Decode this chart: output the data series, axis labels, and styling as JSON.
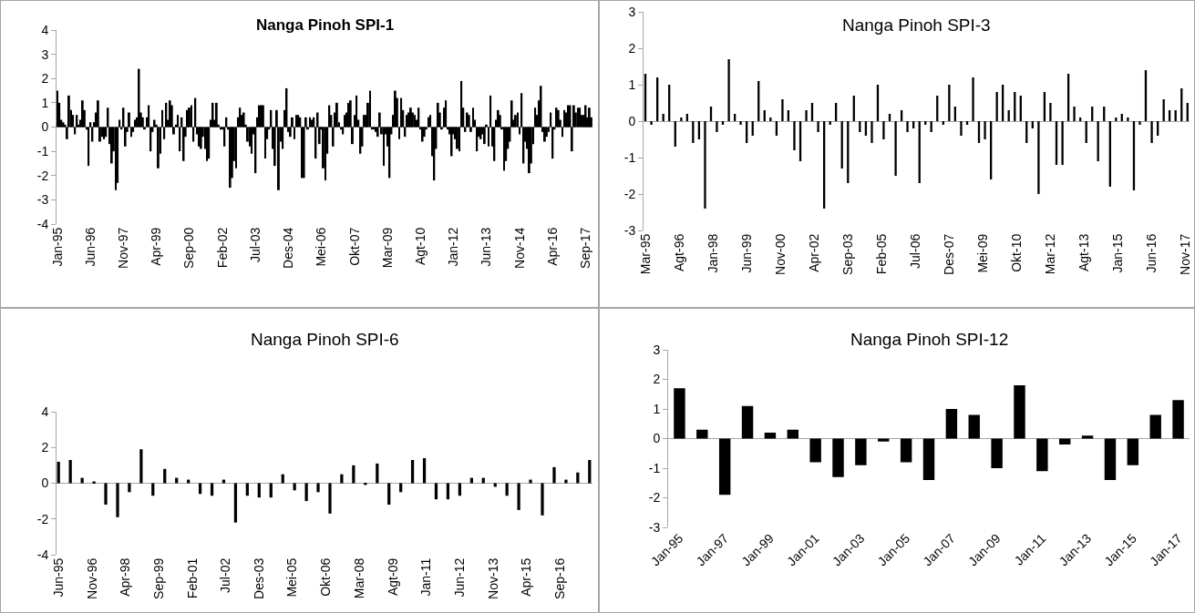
{
  "chart_data": [
    {
      "type": "bar",
      "title": "Nanga Pinoh SPI-1",
      "ylim": [
        -4,
        4
      ],
      "yticks": [
        -4,
        -3,
        -2,
        -1,
        0,
        1,
        2,
        3,
        4
      ],
      "categories": [
        "Jan-95",
        null,
        null,
        null,
        null,
        null,
        null,
        null,
        null,
        null,
        null,
        null,
        null,
        null,
        null,
        null,
        null,
        "Jun-96",
        null,
        null,
        null,
        null,
        null,
        null,
        null,
        null,
        null,
        null,
        null,
        null,
        null,
        null,
        null,
        null,
        "Nov-97",
        null,
        null,
        null,
        null,
        null,
        null,
        null,
        null,
        null,
        null,
        null,
        null,
        null,
        null,
        null,
        null,
        "Apr-99",
        null,
        null,
        null,
        null,
        null,
        null,
        null,
        null,
        null,
        null,
        null,
        null,
        null,
        null,
        null,
        null,
        "Sep-00",
        null,
        null,
        null,
        null,
        null,
        null,
        null,
        null,
        null,
        null,
        null,
        null,
        null,
        null,
        null,
        null,
        "Feb-02",
        null,
        null,
        null,
        null,
        null,
        null,
        null,
        null,
        null,
        null,
        null,
        null,
        null,
        null,
        null,
        null,
        "Jul-03",
        null,
        null,
        null,
        null,
        null,
        null,
        null,
        null,
        null,
        null,
        null,
        null,
        null,
        null,
        null,
        null,
        "Des-04",
        null,
        null,
        null,
        null,
        null,
        null,
        null,
        null,
        null,
        null,
        null,
        null,
        null,
        null,
        null,
        null,
        "Mei-06",
        null,
        null,
        null,
        null,
        null,
        null,
        null,
        null,
        null,
        null,
        null,
        null,
        null,
        null,
        null,
        null,
        "Okt-07",
        null,
        null,
        null,
        null,
        null,
        null,
        null,
        null,
        null,
        null,
        null,
        null,
        null,
        null,
        null,
        null,
        "Mar-09",
        null,
        null,
        null,
        null,
        null,
        null,
        null,
        null,
        null,
        null,
        null,
        null,
        null,
        null,
        null,
        null,
        "Agt-10",
        null,
        null,
        null,
        null,
        null,
        null,
        null,
        null,
        null,
        null,
        null,
        null,
        null,
        null,
        null,
        null,
        "Jan-12",
        null,
        null,
        null,
        null,
        null,
        null,
        null,
        null,
        null,
        null,
        null,
        null,
        null,
        null,
        null,
        null,
        "Jun-13",
        null,
        null,
        null,
        null,
        null,
        null,
        null,
        null,
        null,
        null,
        null,
        null,
        null,
        null,
        null,
        null,
        "Nov-14",
        null,
        null,
        null,
        null,
        null,
        null,
        null,
        null,
        null,
        null,
        null,
        null,
        null,
        null,
        null,
        null,
        "Apr-16",
        null,
        null,
        null,
        null,
        null,
        null,
        null,
        null,
        null,
        null,
        null,
        null,
        null,
        null,
        null,
        null,
        "Sep-17",
        null,
        null,
        null
      ],
      "series": [
        {
          "color": "#000000",
          "values": [
            1.5,
            1.0,
            0.3,
            0.2,
            0.1,
            -0.5,
            1.3,
            0.7,
            0.5,
            -0.3,
            0.5,
            0.1,
            0.3,
            1.1,
            0.7,
            -0.1,
            -1.6,
            0.2,
            -0.6,
            0.2,
            0.6,
            1.1,
            -0.6,
            -0.4,
            -0.5,
            -0.4,
            0.8,
            -0.7,
            -1.5,
            -1.0,
            -2.6,
            -2.3,
            0.3,
            -0.1,
            0.8,
            -0.8,
            -0.2,
            0.6,
            -0.4,
            -0.2,
            0.3,
            0.4,
            2.4,
            0.6,
            0.4,
            -0.1,
            0.4,
            0.9,
            -1.0,
            -0.2,
            0.3,
            0.1,
            -1.7,
            -1.1,
            0.7,
            -0.5,
            1.0,
            0.3,
            1.1,
            0.9,
            -0.3,
            0.1,
            0.5,
            -1.0,
            0.4,
            -1.4,
            -0.4,
            0.7,
            0.8,
            0.9,
            -0.6,
            1.2,
            -0.3,
            -0.8,
            -0.9,
            -0.4,
            -0.9,
            -1.4,
            -1.3,
            0.3,
            1.0,
            0.3,
            1.0,
            0.1,
            -0.1,
            -0.1,
            -0.8,
            0.4,
            -0.1,
            -2.5,
            -2.1,
            -1.4,
            -1.7,
            0.4,
            0.8,
            0.5,
            0.6,
            0.1,
            -0.6,
            -0.8,
            -1.1,
            -0.3,
            -1.9,
            0.4,
            0.9,
            0.9,
            0.9,
            -1.3,
            -0.5,
            -0.1,
            0.7,
            -0.9,
            -1.6,
            0.7,
            -2.6,
            -0.6,
            -0.9,
            0.7,
            1.6,
            -0.2,
            -0.4,
            0.4,
            -0.5,
            0.5,
            0.5,
            0.4,
            -2.1,
            -2.1,
            0.4,
            -0.1,
            0.4,
            0.3,
            0.4,
            -1.3,
            0.6,
            -0.7,
            -0.1,
            -1.7,
            -2.2,
            -1.1,
            0.9,
            0.5,
            -0.8,
            0.6,
            1.0,
            0.2,
            -0.1,
            -0.3,
            0.5,
            0.6,
            1.0,
            1.1,
            -0.7,
            0.5,
            1.3,
            0.3,
            -1.1,
            -0.8,
            0.5,
            0.5,
            1.0,
            1.5,
            -0.1,
            -0.1,
            -0.2,
            -0.4,
            0.6,
            -0.3,
            -1.6,
            -0.3,
            -0.8,
            -2.1,
            -0.3,
            0.5,
            1.5,
            1.2,
            -0.5,
            1.2,
            0.7,
            -0.4,
            0.5,
            0.6,
            0.8,
            0.6,
            0.5,
            0.3,
            0.8,
            -0.1,
            -0.6,
            -0.4,
            -0.1,
            0.4,
            0.5,
            -1.2,
            -2.2,
            -0.9,
            1.0,
            0.6,
            -0.1,
            0.8,
            1.1,
            -0.1,
            -0.3,
            -1.2,
            -0.3,
            -0.5,
            -0.9,
            -1.0,
            1.9,
            0.8,
            -0.2,
            0.6,
            0.5,
            -0.2,
            0.8,
            0.3,
            -1.0,
            -0.4,
            -0.5,
            -0.3,
            -0.7,
            0.1,
            -0.8,
            1.3,
            -0.8,
            -1.4,
            0.3,
            0.7,
            0.5,
            -0.1,
            -1.8,
            -1.4,
            -0.9,
            -0.6,
            1.1,
            0.3,
            0.5,
            0.6,
            -0.3,
            1.4,
            -1.5,
            -0.6,
            -0.9,
            -1.9,
            -1.5,
            -0.7,
            0.8,
            0.5,
            1.1,
            1.7,
            -0.2,
            -0.6,
            -0.4,
            -0.2,
            0.6,
            -1.3,
            -0.1,
            0.8,
            0.7,
            0.3,
            -0.4,
            0.7,
            0.6,
            0.9,
            0.9,
            -1.0,
            0.9,
            0.6,
            0.8,
            0.8,
            0.5,
            0.5,
            0.9,
            0.4,
            0.8,
            0.4
          ]
        }
      ]
    },
    {
      "type": "bar",
      "title": "Nanga Pinoh SPI-3",
      "ylim": [
        -3,
        3
      ],
      "yticks": [
        -3,
        -2,
        -1,
        0,
        1,
        2,
        3
      ],
      "xlim": [
        "1995-02-01",
        "2018-01-01"
      ],
      "xticks": [
        {
          "value": "1995-03",
          "label": "Mar-95"
        },
        {
          "value": "1996-08",
          "label": "Agt-96"
        },
        {
          "value": "1998-01",
          "label": "Jan-98"
        },
        {
          "value": "1999-06",
          "label": "Jun-99"
        },
        {
          "value": "2000-11",
          "label": "Nov-00"
        },
        {
          "value": "2002-04",
          "label": "Apr-02"
        },
        {
          "value": "2003-09",
          "label": "Sep-03"
        },
        {
          "value": "2005-02",
          "label": "Feb-05"
        },
        {
          "value": "2006-07",
          "label": "Jul-06"
        },
        {
          "value": "2007-12",
          "label": "Des-07"
        },
        {
          "value": "2009-05",
          "label": "Mei-09"
        },
        {
          "value": "2010-10",
          "label": "Okt-10"
        },
        {
          "value": "2012-03",
          "label": "Mar-12"
        },
        {
          "value": "2013-08",
          "label": "Agt-13"
        },
        {
          "value": "2015-01",
          "label": "Jan-15"
        },
        {
          "value": "2016-06",
          "label": "Jun-16"
        },
        {
          "value": "2017-11",
          "label": "Nov-17"
        }
      ],
      "x": [
        "1995-03",
        "1995-06",
        "1995-09",
        "1995-12",
        "1996-03",
        "1996-06",
        "1996-09",
        "1996-12",
        "1997-03",
        "1997-06",
        "1997-09",
        "1997-12",
        "1998-03",
        "1998-06",
        "1998-09",
        "1998-12",
        "1999-03",
        "1999-06",
        "1999-09",
        "1999-12",
        "2000-03",
        "2000-06",
        "2000-09",
        "2000-12",
        "2001-03",
        "2001-06",
        "2001-09",
        "2001-12",
        "2002-03",
        "2002-06",
        "2002-09",
        "2002-12",
        "2003-03",
        "2003-06",
        "2003-09",
        "2003-12",
        "2004-03",
        "2004-06",
        "2004-09",
        "2004-12",
        "2005-03",
        "2005-06",
        "2005-09",
        "2005-12",
        "2006-03",
        "2006-06",
        "2006-09",
        "2006-12",
        "2007-03",
        "2007-06",
        "2007-09",
        "2007-12",
        "2008-03",
        "2008-06",
        "2008-09",
        "2008-12",
        "2009-03",
        "2009-06",
        "2009-09",
        "2009-12",
        "2010-03",
        "2010-06",
        "2010-09",
        "2010-12",
        "2011-03",
        "2011-06",
        "2011-09",
        "2011-12",
        "2012-03",
        "2012-06",
        "2012-09",
        "2012-12",
        "2013-03",
        "2013-06",
        "2013-09",
        "2013-12",
        "2014-03",
        "2014-06",
        "2014-09",
        "2014-12",
        "2015-03",
        "2015-06",
        "2015-09",
        "2015-12",
        "2016-03",
        "2016-06",
        "2016-09",
        "2016-12",
        "2017-03",
        "2017-06",
        "2017-09",
        "2017-12"
      ],
      "series": [
        {
          "color": "#000000",
          "values": [
            1.3,
            -0.1,
            1.2,
            0.2,
            1.0,
            -0.7,
            0.1,
            0.2,
            -0.6,
            -0.5,
            -2.4,
            0.4,
            -0.3,
            -0.1,
            1.7,
            0.2,
            -0.1,
            -0.6,
            -0.4,
            1.1,
            0.3,
            0.1,
            -0.4,
            0.6,
            0.3,
            -0.8,
            -1.1,
            0.3,
            0.5,
            -0.3,
            -2.4,
            -0.1,
            0.5,
            -1.3,
            -1.7,
            0.7,
            -0.3,
            -0.4,
            -0.6,
            1.0,
            -0.5,
            0.2,
            -1.5,
            0.3,
            -0.3,
            -0.2,
            -1.7,
            -0.1,
            -0.3,
            0.7,
            -0.1,
            1.0,
            0.4,
            -0.4,
            -0.1,
            1.2,
            -0.6,
            -0.5,
            -1.6,
            0.8,
            1.0,
            0.3,
            0.8,
            0.7,
            -0.6,
            -0.2,
            -2.0,
            0.8,
            0.5,
            -1.2,
            -1.2,
            1.3,
            0.4,
            0.1,
            -0.6,
            0.4,
            -1.1,
            0.4,
            -1.8,
            0.1,
            0.2,
            0.1,
            -1.9,
            -0.1,
            1.4,
            -0.6,
            -0.4,
            0.6,
            0.3,
            0.3,
            0.9,
            0.5
          ]
        }
      ]
    },
    {
      "type": "bar",
      "title": "Nanga Pinoh SPI-6",
      "ylim": [
        -4,
        4
      ],
      "yticks": [
        -4,
        -2,
        0,
        2,
        4
      ],
      "xlim": [
        "1995-05-01",
        "2018-01-15"
      ],
      "xticks": [
        {
          "value": "1995-06",
          "label": "Jun-95"
        },
        {
          "value": "1996-11",
          "label": "Nov-96"
        },
        {
          "value": "1998-04",
          "label": "Apr-98"
        },
        {
          "value": "1999-09",
          "label": "Sep-99"
        },
        {
          "value": "2001-02",
          "label": "Feb-01"
        },
        {
          "value": "2002-07",
          "label": "Jul-02"
        },
        {
          "value": "2003-12",
          "label": "Des-03"
        },
        {
          "value": "2005-05",
          "label": "Mei-05"
        },
        {
          "value": "2006-10",
          "label": "Okt-06"
        },
        {
          "value": "2008-03",
          "label": "Mar-08"
        },
        {
          "value": "2009-08",
          "label": "Agt-09"
        },
        {
          "value": "2011-01",
          "label": "Jan-11"
        },
        {
          "value": "2012-06",
          "label": "Jun-12"
        },
        {
          "value": "2013-11",
          "label": "Nov-13"
        },
        {
          "value": "2015-04",
          "label": "Apr-15"
        },
        {
          "value": "2016-09",
          "label": "Sep-16"
        }
      ],
      "x": [
        "1995-06",
        "1995-12",
        "1996-06",
        "1996-12",
        "1997-06",
        "1997-12",
        "1998-06",
        "1998-12",
        "1999-06",
        "1999-12",
        "2000-06",
        "2000-12",
        "2001-06",
        "2001-12",
        "2002-06",
        "2002-12",
        "2003-06",
        "2003-12",
        "2004-06",
        "2004-12",
        "2005-06",
        "2005-12",
        "2006-06",
        "2006-12",
        "2007-06",
        "2007-12",
        "2008-06",
        "2008-12",
        "2009-06",
        "2009-12",
        "2010-06",
        "2010-12",
        "2011-06",
        "2011-12",
        "2012-06",
        "2012-12",
        "2013-06",
        "2013-12",
        "2014-06",
        "2014-12",
        "2015-06",
        "2015-12",
        "2016-06",
        "2016-12",
        "2017-06",
        "2017-12"
      ],
      "series": [
        {
          "color": "#000000",
          "values": [
            1.2,
            1.3,
            0.3,
            0.1,
            -1.2,
            -1.9,
            -0.5,
            1.9,
            -0.7,
            0.8,
            0.3,
            0.2,
            -0.6,
            -0.7,
            0.2,
            -2.2,
            -0.7,
            -0.8,
            -0.8,
            0.5,
            -0.4,
            -1.0,
            -0.5,
            -1.7,
            0.5,
            1.0,
            -0.1,
            1.1,
            -1.2,
            -0.5,
            1.3,
            1.4,
            -0.9,
            -0.9,
            -0.7,
            0.3,
            0.3,
            -0.2,
            -0.7,
            -1.5,
            0.2,
            -1.8,
            0.9,
            0.2,
            0.6,
            1.3
          ]
        }
      ]
    },
    {
      "type": "bar",
      "title": "Nanga Pinoh SPI-12",
      "ylim": [
        -3,
        3
      ],
      "yticks": [
        -3,
        -2,
        -1,
        0,
        1,
        2,
        3
      ],
      "categories": [
        "Jan-95",
        null,
        "Jan-97",
        null,
        "Jan-99",
        null,
        "Jan-01",
        null,
        "Jan-03",
        null,
        "Jan-05",
        null,
        "Jan-07",
        null,
        "Jan-09",
        null,
        "Jan-11",
        null,
        "Jan-13",
        null,
        "Jan-15",
        null,
        "Jan-17"
      ],
      "series": [
        {
          "color": "#000000",
          "values": [
            1.7,
            0.3,
            -1.9,
            1.1,
            0.2,
            0.3,
            -0.8,
            -1.3,
            -0.9,
            -0.1,
            -0.8,
            -1.4,
            1.0,
            0.8,
            -1.0,
            1.8,
            -1.1,
            -0.2,
            0.1,
            -1.4,
            -0.9,
            0.8,
            1.3
          ]
        }
      ]
    }
  ]
}
